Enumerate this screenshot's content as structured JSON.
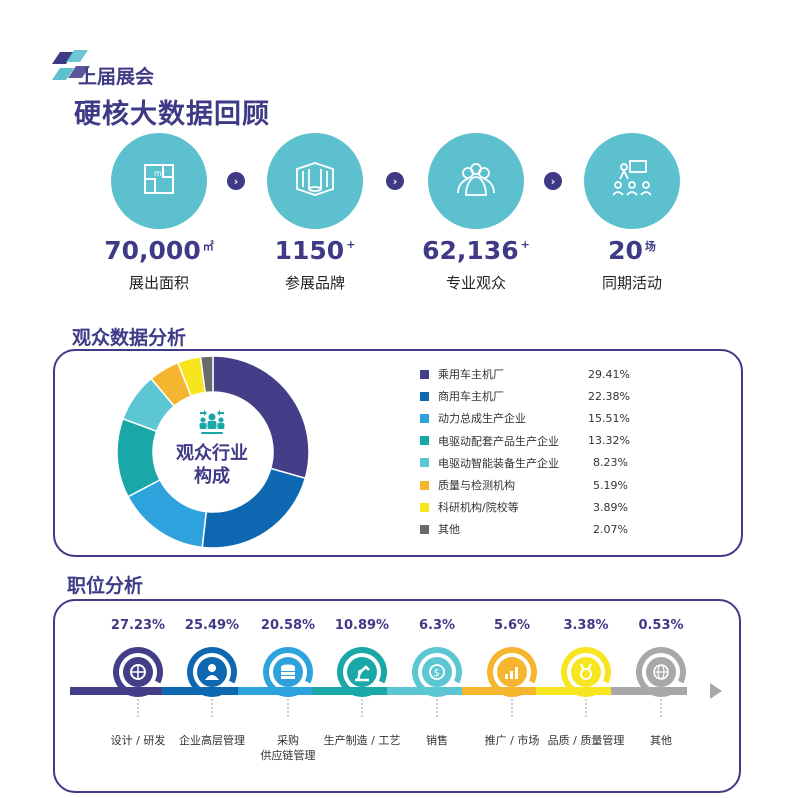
{
  "header": {
    "kicker": "上届展会",
    "title": "硬核大数据回顾"
  },
  "stats": [
    {
      "value": "70,000",
      "unit": "㎡",
      "label": "展出面积",
      "icon": "floorplan-icon"
    },
    {
      "value": "1150",
      "unit": "+",
      "label": "参展品牌",
      "icon": "booth-icon"
    },
    {
      "value": "62,136",
      "unit": "+",
      "label": "专业观众",
      "icon": "audience-icon"
    },
    {
      "value": "20",
      "unit": "场",
      "label": "同期活动",
      "icon": "presentation-icon"
    }
  ],
  "audience_section": {
    "title": "观众数据分析",
    "center_line1": "观众行业",
    "center_line2": "构成"
  },
  "jobs_section": {
    "title": "职位分析"
  },
  "colors": {
    "primary": "#3f3a86",
    "teal_circle": "#5cc0cf"
  },
  "chart_data": [
    {
      "type": "pie",
      "variant": "donut",
      "title": "观众行业构成",
      "legend_position": "right",
      "series": [
        {
          "name": "乘用车主机厂",
          "value": 29.41,
          "label": "29.41%",
          "color": "#433e87"
        },
        {
          "name": "商用车主机厂",
          "value": 22.38,
          "label": "22.38%",
          "color": "#0d68b1"
        },
        {
          "name": "动力总成生产企业",
          "value": 15.51,
          "label": "15.51%",
          "color": "#2ea2dc"
        },
        {
          "name": "电驱动配套产品生产企业",
          "value": 13.32,
          "label": "13.32%",
          "color": "#1aa7a7"
        },
        {
          "name": "电驱动智能装备生产企业",
          "value": 8.23,
          "label": "8.23%",
          "color": "#5cc7d2"
        },
        {
          "name": "质量与检测机构",
          "value": 5.19,
          "label": "5.19%",
          "color": "#f5b52e"
        },
        {
          "name": "科研机构/院校等",
          "value": 3.89,
          "label": "3.89%",
          "color": "#f7e61f"
        },
        {
          "name": "其他",
          "value": 2.07,
          "label": "2.07%",
          "color": "#6b6b6b"
        }
      ]
    },
    {
      "type": "bar",
      "title": "职位分析",
      "categories": [
        "设计 / 研发",
        "企业高层管理",
        "采购 供应链管理",
        "生产制造 / 工艺",
        "销售",
        "推广 / 市场",
        "品质 / 质量管理",
        "其他"
      ],
      "values": [
        27.23,
        25.49,
        20.58,
        10.89,
        6.3,
        5.6,
        3.38,
        0.53
      ],
      "points": [
        {
          "pct": "27.23%",
          "line1": "设计 / 研发",
          "line2": "",
          "color": "#433e87",
          "icon": "gear-globe-icon"
        },
        {
          "pct": "25.49%",
          "line1": "企业高层管理",
          "line2": "",
          "color": "#0d68b1",
          "icon": "manager-icon"
        },
        {
          "pct": "20.58%",
          "line1": "采购",
          "line2": "供应链管理",
          "color": "#2ea2dc",
          "icon": "coins-icon"
        },
        {
          "pct": "10.89%",
          "line1": "生产制造 / 工艺",
          "line2": "",
          "color": "#1aa7a7",
          "icon": "robot-arm-icon"
        },
        {
          "pct": "6.3%",
          "line1": "销售",
          "line2": "",
          "color": "#5cc7d2",
          "icon": "dollar-icon"
        },
        {
          "pct": "5.6%",
          "line1": "推广 / 市场",
          "line2": "",
          "color": "#f5b52e",
          "icon": "growth-chart-icon"
        },
        {
          "pct": "3.38%",
          "line1": "品质 / 质量管理",
          "line2": "",
          "color": "#f7e61f",
          "icon": "medal-icon"
        },
        {
          "pct": "0.53%",
          "line1": "其他",
          "line2": "",
          "color": "#a8a8a8",
          "icon": "globe-icon"
        }
      ]
    }
  ]
}
